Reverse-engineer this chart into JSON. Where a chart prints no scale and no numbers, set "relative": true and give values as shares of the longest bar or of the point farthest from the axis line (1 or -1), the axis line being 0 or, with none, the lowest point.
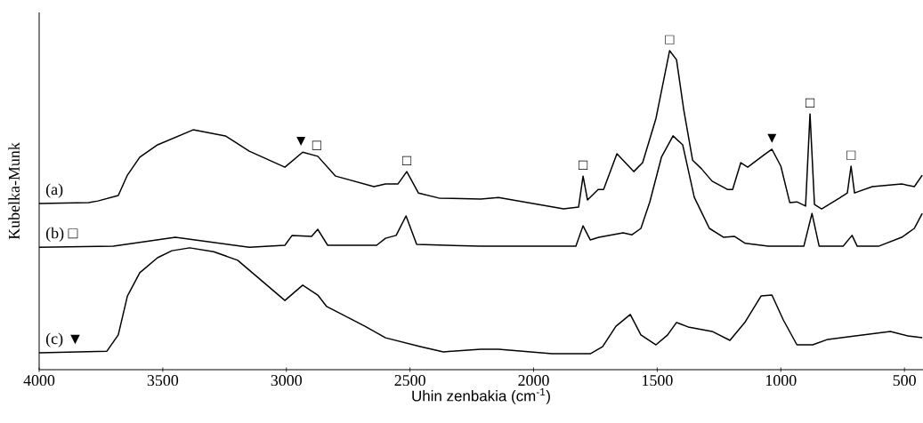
{
  "chart_data": {
    "type": "line",
    "relative": true,
    "xlabel": "Uhin zenbakia (cm$^{-1}$)",
    "ylabel": "Kubelka-Munk",
    "xlim": [
      4000,
      425
    ],
    "xticks": [
      4000,
      3500,
      3000,
      2500,
      2000,
      1500,
      1000,
      500
    ],
    "tick_labels": "x",
    "series": [
      {
        "name": "(a)",
        "color": "#000000",
        "x": [
          4000,
          3800,
          3762,
          3680,
          3643,
          3593,
          3521,
          3377,
          3247,
          3150,
          3006,
          2934,
          2873,
          2801,
          2646,
          2599,
          2549,
          2513,
          2466,
          2383,
          2214,
          2142,
          1879,
          1818,
          1800,
          1782,
          1739,
          1717,
          1663,
          1595,
          1559,
          1505,
          1450,
          1422,
          1393,
          1357,
          1321,
          1278,
          1216,
          1195,
          1162,
          1134,
          1072,
          1036,
          1000,
          964,
          935,
          900,
          882,
          864,
          835,
          763,
          731,
          716,
          702,
          630,
          511,
          460,
          428
        ],
        "values": [
          0.521,
          0.524,
          0.529,
          0.546,
          0.61,
          0.666,
          0.705,
          0.752,
          0.733,
          0.685,
          0.635,
          0.682,
          0.669,
          0.607,
          0.574,
          0.582,
          0.582,
          0.621,
          0.554,
          0.538,
          0.535,
          0.54,
          0.504,
          0.51,
          0.607,
          0.532,
          0.565,
          0.565,
          0.677,
          0.621,
          0.649,
          0.788,
          1.0,
          0.972,
          0.816,
          0.657,
          0.63,
          0.591,
          0.565,
          0.565,
          0.649,
          0.635,
          0.671,
          0.691,
          0.638,
          0.524,
          0.526,
          0.513,
          0.802,
          0.518,
          0.504,
          0.538,
          0.554,
          0.638,
          0.554,
          0.574,
          0.582,
          0.574,
          0.61
        ]
      },
      {
        "name": "(b) □",
        "color": "#000000",
        "x": [
          4000,
          3700,
          3449,
          3150,
          3006,
          2977,
          2898,
          2873,
          2833,
          2635,
          2599,
          2556,
          2516,
          2473,
          2214,
          1829,
          1800,
          1771,
          1736,
          1638,
          1602,
          1566,
          1530,
          1483,
          1436,
          1397,
          1350,
          1289,
          1231,
          1188,
          1144,
          1051,
          907,
          874,
          845,
          748,
          712,
          691,
          605,
          511,
          460,
          428
        ],
        "values": [
          0.384,
          0.387,
          0.415,
          0.384,
          0.39,
          0.421,
          0.418,
          0.44,
          0.39,
          0.39,
          0.412,
          0.421,
          0.482,
          0.393,
          0.387,
          0.387,
          0.451,
          0.407,
          0.415,
          0.429,
          0.423,
          0.443,
          0.526,
          0.666,
          0.733,
          0.705,
          0.54,
          0.443,
          0.415,
          0.418,
          0.396,
          0.387,
          0.387,
          0.49,
          0.387,
          0.387,
          0.421,
          0.387,
          0.387,
          0.415,
          0.443,
          0.49
        ]
      },
      {
        "name": "(c) ▼",
        "color": "#000000",
        "x": [
          4000,
          3726,
          3680,
          3643,
          3593,
          3521,
          3463,
          3391,
          3294,
          3197,
          3006,
          2934,
          2873,
          2837,
          2682,
          2599,
          2455,
          2365,
          2214,
          2142,
          1926,
          1771,
          1721,
          1667,
          1609,
          1566,
          1505,
          1458,
          1422,
          1375,
          1278,
          1206,
          1144,
          1080,
          1036,
          990,
          935,
          871,
          810,
          727,
          557,
          486,
          428
        ],
        "values": [
          0.053,
          0.058,
          0.109,
          0.231,
          0.304,
          0.351,
          0.373,
          0.382,
          0.37,
          0.343,
          0.217,
          0.265,
          0.234,
          0.198,
          0.136,
          0.1,
          0.072,
          0.056,
          0.064,
          0.064,
          0.05,
          0.05,
          0.072,
          0.136,
          0.173,
          0.109,
          0.078,
          0.109,
          0.148,
          0.134,
          0.12,
          0.092,
          0.15,
          0.231,
          0.234,
          0.156,
          0.078,
          0.078,
          0.095,
          0.103,
          0.12,
          0.106,
          0.1
        ]
      }
    ],
    "annotations": [
      {
        "text": "▼",
        "x": 2941,
        "y": 0.682
      },
      {
        "text": "□",
        "x": 2877,
        "y": 0.669
      },
      {
        "text": "□",
        "x": 2513,
        "y": 0.621
      },
      {
        "text": "□",
        "x": 1800,
        "y": 0.607
      },
      {
        "text": "□",
        "x": 1450,
        "y": 1.0
      },
      {
        "text": "▼",
        "x": 1036,
        "y": 0.691
      },
      {
        "text": "□",
        "x": 882,
        "y": 0.802
      },
      {
        "text": "□",
        "x": 716,
        "y": 0.638
      }
    ]
  }
}
